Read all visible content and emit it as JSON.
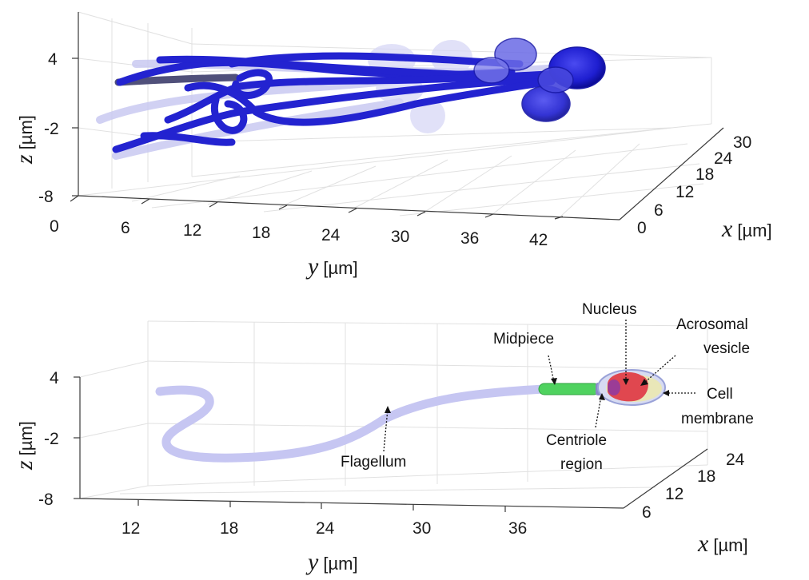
{
  "top_panel": {
    "z_ticks": [
      "4",
      "-2",
      "-8"
    ],
    "y_ticks": [
      "0",
      "6",
      "12",
      "18",
      "24",
      "30",
      "36",
      "42"
    ],
    "x_ticks": [
      "0",
      "6",
      "12",
      "18",
      "24",
      "30"
    ],
    "z_label": {
      "var": "z",
      "unit": "[µm]"
    },
    "y_label": {
      "var": "y",
      "unit": "[µm]"
    },
    "x_label": {
      "var": "x",
      "unit": "[µm]"
    }
  },
  "bottom_panel": {
    "z_ticks": [
      "4",
      "-2",
      "-8"
    ],
    "y_ticks": [
      "12",
      "18",
      "24",
      "30",
      "36"
    ],
    "x_ticks": [
      "6",
      "12",
      "18",
      "24"
    ],
    "z_label": {
      "var": "z",
      "unit": "[µm]"
    },
    "y_label": {
      "var": "y",
      "unit": "[µm]"
    },
    "x_label": {
      "var": "x",
      "unit": "[µm]"
    },
    "annotations": {
      "nucleus": "Nucleus",
      "acrosomal_line1": "Acrosomal",
      "acrosomal_line2": "vesicle",
      "midpiece": "Midpiece",
      "cell_line1": "Cell",
      "cell_line2": "membrane",
      "centriole_line1": "Centriole",
      "centriole_line2": "region",
      "flagellum": "Flagellum"
    }
  },
  "colors": {
    "trajectory_blue": "#2323d0",
    "flagellum": "#c9c9f2",
    "midpiece": "#4fd25f",
    "nucleus": "#e0474f",
    "acrosome": "#e9e7b8",
    "membrane": "#a9b1e0"
  }
}
